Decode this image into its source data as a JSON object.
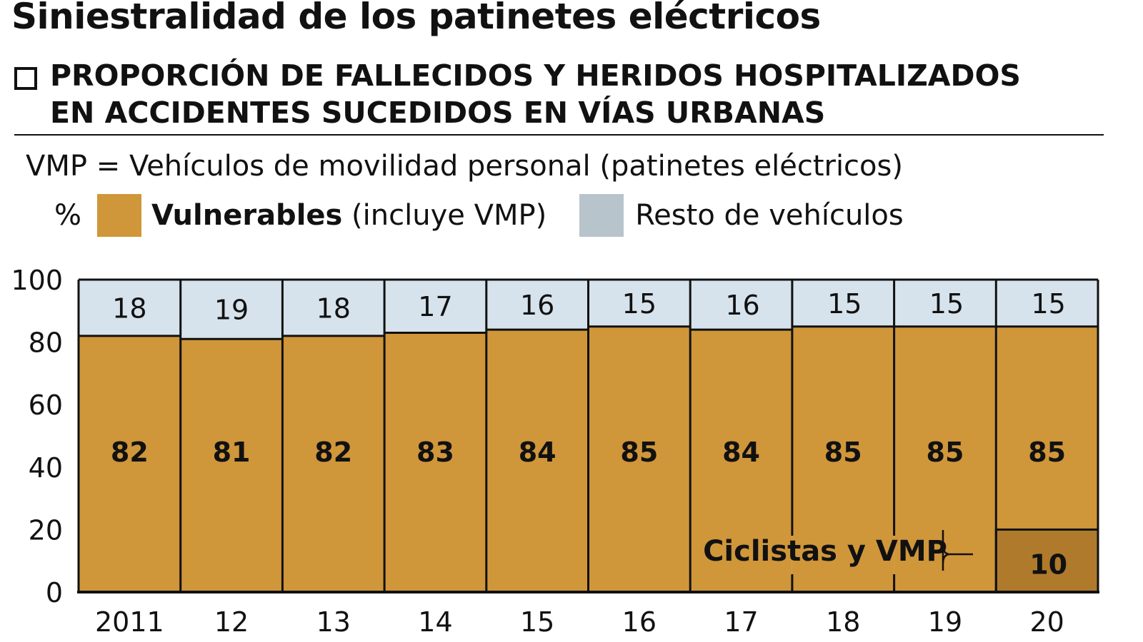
{
  "header": {
    "title": "Siniestralidad de los patinetes eléctricos",
    "subtitle_line1": "PROPORCIÓN DE FALLECIDOS Y HERIDOS HOSPITALIZADOS",
    "subtitle_line2": "EN ACCIDENTES SUCEDIDOS EN VÍAS URBANAS",
    "note": "VMP = Vehículos de movilidad personal (patinetes eléctricos)"
  },
  "legend": {
    "unit": "%",
    "items": [
      {
        "label_bold": "Vulnerables",
        "label_rest": " (incluye VMP)",
        "color": "#d0963a"
      },
      {
        "label_bold": "",
        "label_rest": "Resto de vehículos",
        "color": "#b8c4cc"
      }
    ]
  },
  "chart_data": {
    "type": "bar",
    "stacked": true,
    "categories": [
      "2011",
      "12",
      "13",
      "14",
      "15",
      "16",
      "17",
      "18",
      "19",
      "20"
    ],
    "series": [
      {
        "name": "Vulnerables (incluye VMP)",
        "values": [
          82,
          81,
          82,
          83,
          84,
          85,
          84,
          85,
          85,
          85
        ],
        "color": "#d0963a"
      },
      {
        "name": "Resto de vehículos",
        "values": [
          18,
          19,
          18,
          17,
          16,
          15,
          16,
          15,
          15,
          15
        ],
        "color": "#d6e3ec"
      }
    ],
    "annotation": {
      "label": "Ciclistas y VMP",
      "category": "20",
      "value": 10,
      "color": "#b07a2c"
    },
    "ylim": [
      0,
      100
    ],
    "yticks": [
      "0",
      "20",
      "40",
      "60",
      "80",
      "100"
    ],
    "xlabel": "",
    "ylabel": "%",
    "grid": false
  }
}
